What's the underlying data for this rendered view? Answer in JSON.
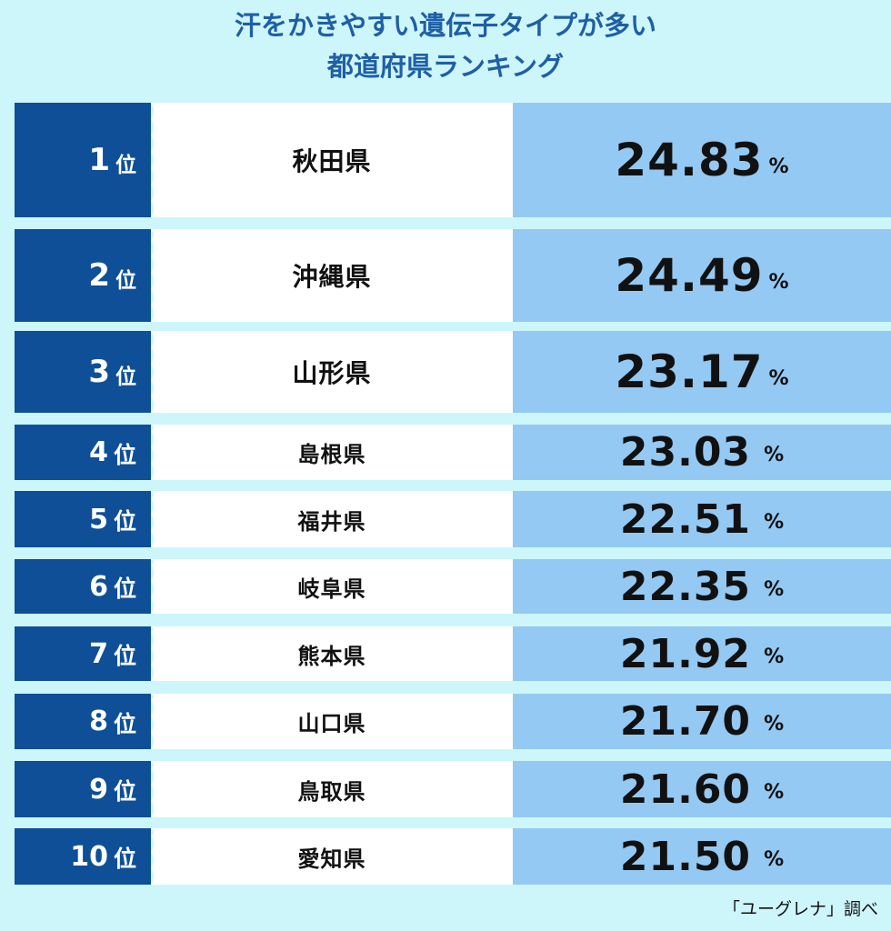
{
  "title": {
    "line1": "汗をかきやすい遺伝子タイプが多い",
    "line2": "都道府県ランキング"
  },
  "rows": [
    {
      "rank": "1",
      "rank_unit": "位",
      "prefecture": "秋田県",
      "value": "24.83",
      "unit": "%"
    },
    {
      "rank": "2",
      "rank_unit": "位",
      "prefecture": "沖縄県",
      "value": "24.49",
      "unit": "%"
    },
    {
      "rank": "3",
      "rank_unit": "位",
      "prefecture": "山形県",
      "value": "23.17",
      "unit": "%"
    },
    {
      "rank": "4",
      "rank_unit": "位",
      "prefecture": "島根県",
      "value": "23.03",
      "unit": "%"
    },
    {
      "rank": "5",
      "rank_unit": "位",
      "prefecture": "福井県",
      "value": "22.51",
      "unit": "%"
    },
    {
      "rank": "6",
      "rank_unit": "位",
      "prefecture": "岐阜県",
      "value": "22.35",
      "unit": "%"
    },
    {
      "rank": "7",
      "rank_unit": "位",
      "prefecture": "熊本県",
      "value": "21.92",
      "unit": "%"
    },
    {
      "rank": "8",
      "rank_unit": "位",
      "prefecture": "山口県",
      "value": "21.70",
      "unit": "%"
    },
    {
      "rank": "9",
      "rank_unit": "位",
      "prefecture": "鳥取県",
      "value": "21.60",
      "unit": "%"
    },
    {
      "rank": "10",
      "rank_unit": "位",
      "prefecture": "愛知県",
      "value": "21.50",
      "unit": "%"
    }
  ],
  "source": "「ユーグレナ」調べ",
  "colors": {
    "background": "#cdf6fb",
    "title": "#1f5fa6",
    "rank_bg": "#0e4f97",
    "value_bg": "#94c9f3"
  }
}
